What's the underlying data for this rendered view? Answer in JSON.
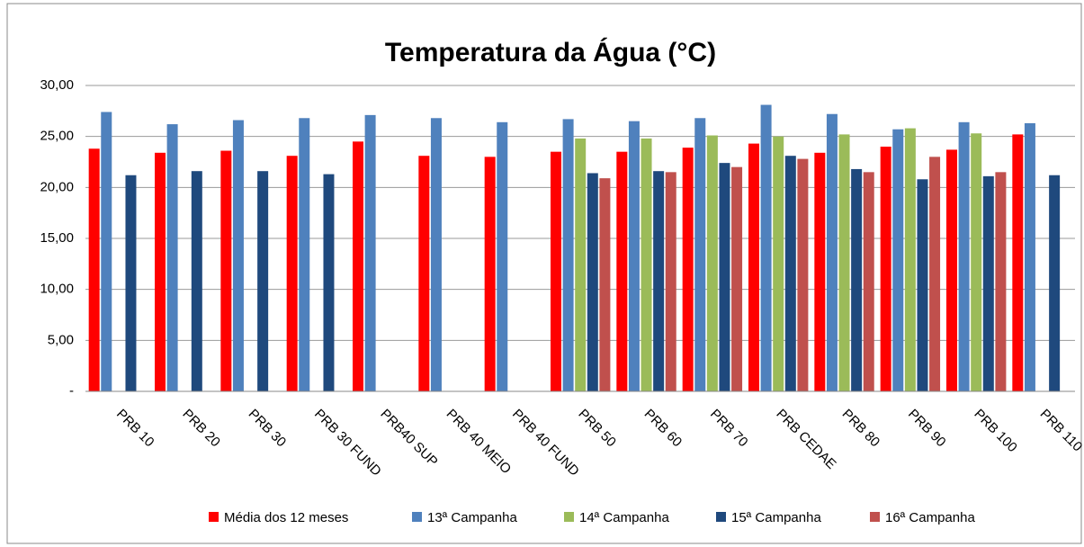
{
  "chart_data": {
    "type": "bar",
    "title": "Temperatura da Água (°C)",
    "categories": [
      "PRB 10",
      "PRB 20",
      "PRB 30",
      "PRB 30 FUND",
      "PRB40 SUP",
      "PRB 40 MEIO",
      "PRB 40 FUND",
      "PRB 50",
      "PRB 60",
      "PRB 70",
      "PRB CEDAE",
      "PRB 80",
      "PRB 90",
      "PRB 100",
      "PRB 110"
    ],
    "series": [
      {
        "name": "Média dos 12 meses",
        "color": "#ff0000",
        "values": [
          23.8,
          23.4,
          23.6,
          23.1,
          24.5,
          23.1,
          23.0,
          23.5,
          23.5,
          23.9,
          24.3,
          23.4,
          24.0,
          23.7,
          25.2
        ]
      },
      {
        "name": "13ª Campanha",
        "color": "#4f81bd",
        "values": [
          27.4,
          26.2,
          26.6,
          26.8,
          27.1,
          26.8,
          26.4,
          26.7,
          26.5,
          26.8,
          28.1,
          27.2,
          25.7,
          26.4,
          26.3
        ]
      },
      {
        "name": "14ª Campanha",
        "color": "#9bbb59",
        "values": [
          null,
          null,
          null,
          null,
          null,
          null,
          null,
          24.8,
          24.8,
          25.1,
          25.0,
          25.2,
          25.8,
          25.3,
          null
        ]
      },
      {
        "name": "15ª Campanha",
        "color": "#1f497d",
        "values": [
          21.2,
          21.6,
          21.6,
          21.3,
          null,
          null,
          null,
          21.4,
          21.6,
          22.4,
          23.1,
          21.8,
          20.8,
          21.1,
          21.2
        ]
      },
      {
        "name": "16ª Campanha",
        "color": "#c0504d",
        "values": [
          null,
          null,
          null,
          null,
          null,
          null,
          null,
          20.9,
          21.5,
          22.0,
          22.8,
          21.5,
          23.0,
          21.5,
          null
        ]
      }
    ],
    "ylim": [
      0,
      30
    ],
    "yticks": [
      {
        "value": 0,
        "label": "-"
      },
      {
        "value": 5,
        "label": "5,00"
      },
      {
        "value": 10,
        "label": "10,00"
      },
      {
        "value": 15,
        "label": "15,00"
      },
      {
        "value": 20,
        "label": "20,00"
      },
      {
        "value": 25,
        "label": "25,00"
      },
      {
        "value": 30,
        "label": "30,00"
      }
    ],
    "grid": true,
    "legend": "bottom"
  }
}
